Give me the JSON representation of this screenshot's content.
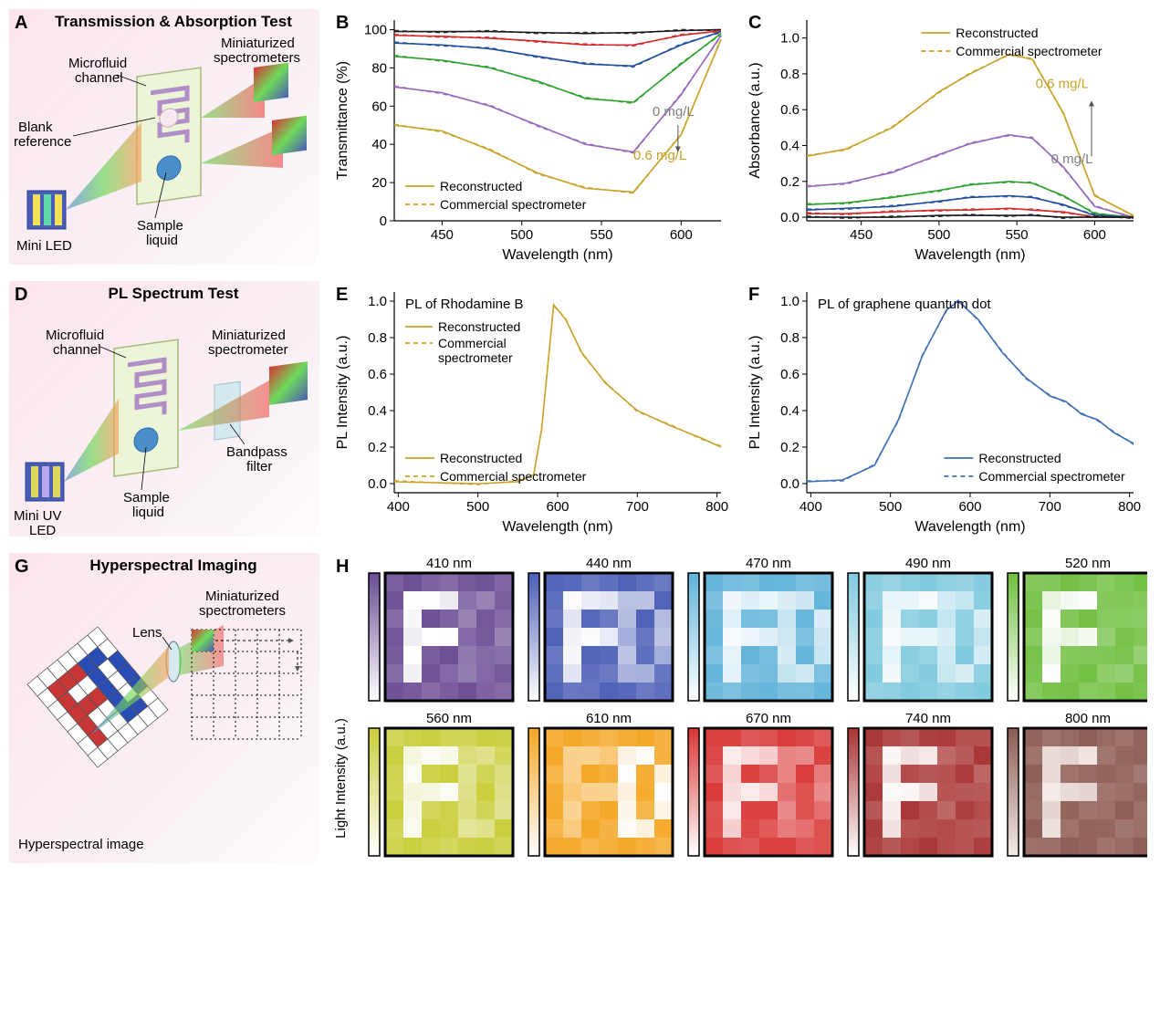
{
  "panelA": {
    "label": "A",
    "title": "Transmission & Absorption Test",
    "labels": {
      "microfluid": "Microfluid\nchannel",
      "spectrometers": "Miniaturized\nspectrometers",
      "blank": "Blank\nreference",
      "miniLED": "Mini LED",
      "sample": "Sample\nliquid"
    }
  },
  "panelB": {
    "label": "B",
    "type": "line",
    "xlabel": "Wavelength (nm)",
    "ylabel": "Transmittance (%)",
    "xlim": [
      420,
      625
    ],
    "ylim": [
      0,
      105
    ],
    "xticks": [
      450,
      500,
      550,
      600
    ],
    "yticks": [
      0,
      20,
      40,
      60,
      80,
      100
    ],
    "legend": [
      "Reconstructed",
      "Commercial spectrometer"
    ],
    "annot_top": "0 mg/L",
    "annot_bot": "0.6 mg/L",
    "annot_top_color": "#808080",
    "annot_bot_color": "#c9a227",
    "series": [
      {
        "color": "#1a1a1a",
        "x": [
          420,
          450,
          480,
          510,
          540,
          570,
          600,
          625
        ],
        "y": [
          99,
          99,
          99,
          98.5,
          98,
          98.5,
          99.5,
          100
        ]
      },
      {
        "color": "#d62728",
        "x": [
          420,
          450,
          480,
          510,
          540,
          570,
          600,
          625
        ],
        "y": [
          97,
          96.5,
          95.5,
          94,
          92,
          92,
          97,
          99.5
        ]
      },
      {
        "color": "#1f4e9c",
        "x": [
          420,
          450,
          480,
          510,
          540,
          570,
          600,
          625
        ],
        "y": [
          93,
          92,
          90,
          86,
          82,
          81,
          92,
          99
        ]
      },
      {
        "color": "#2ca02c",
        "x": [
          420,
          450,
          480,
          510,
          540,
          570,
          600,
          625
        ],
        "y": [
          86,
          84,
          80,
          73,
          64,
          62,
          82,
          98
        ]
      },
      {
        "color": "#9467bd",
        "x": [
          420,
          450,
          480,
          510,
          540,
          570,
          600,
          625
        ],
        "y": [
          70,
          67,
          60,
          50,
          40,
          36,
          66,
          97
        ]
      },
      {
        "color": "#c9a227",
        "x": [
          420,
          450,
          480,
          510,
          540,
          570,
          600,
          625
        ],
        "y": [
          50,
          47,
          37,
          25,
          17,
          15,
          45,
          95
        ]
      }
    ],
    "title_fontsize": 15,
    "label_fontsize": 15,
    "tick_fontsize": 13,
    "background_color": "#ffffff"
  },
  "panelC": {
    "label": "C",
    "type": "line",
    "xlabel": "Wavelength (nm)",
    "ylabel": "Absorbance (a.u.)",
    "xlim": [
      415,
      625
    ],
    "ylim": [
      -0.02,
      1.1
    ],
    "xticks": [
      450,
      500,
      550,
      600
    ],
    "yticks": [
      0.0,
      0.2,
      0.4,
      0.6,
      0.8,
      1.0
    ],
    "legend": [
      "Reconstructed",
      "Commercial spectrometer"
    ],
    "annot_top": "0.6 mg/L",
    "annot_bot": "0 mg/L",
    "annot_top_color": "#c9a227",
    "annot_bot_color": "#808080",
    "series": [
      {
        "color": "#c9a227",
        "x": [
          415,
          440,
          470,
          500,
          520,
          545,
          560,
          580,
          600,
          625
        ],
        "y": [
          0.34,
          0.38,
          0.5,
          0.7,
          0.8,
          0.91,
          0.88,
          0.58,
          0.12,
          0.01
        ]
      },
      {
        "color": "#9467bd",
        "x": [
          415,
          440,
          470,
          500,
          520,
          545,
          560,
          580,
          600,
          625
        ],
        "y": [
          0.17,
          0.19,
          0.25,
          0.35,
          0.41,
          0.46,
          0.44,
          0.28,
          0.06,
          0.0
        ]
      },
      {
        "color": "#2ca02c",
        "x": [
          415,
          440,
          470,
          500,
          520,
          545,
          560,
          580,
          600,
          625
        ],
        "y": [
          0.07,
          0.08,
          0.11,
          0.15,
          0.18,
          0.2,
          0.19,
          0.12,
          0.02,
          0.0
        ]
      },
      {
        "color": "#1f4e9c",
        "x": [
          415,
          440,
          470,
          500,
          520,
          545,
          560,
          580,
          600,
          625
        ],
        "y": [
          0.04,
          0.05,
          0.06,
          0.09,
          0.11,
          0.12,
          0.11,
          0.07,
          0.01,
          0.0
        ]
      },
      {
        "color": "#d62728",
        "x": [
          415,
          440,
          470,
          500,
          520,
          545,
          560,
          580,
          600,
          625
        ],
        "y": [
          0.02,
          0.02,
          0.03,
          0.04,
          0.04,
          0.05,
          0.04,
          0.03,
          0.0,
          0.0
        ]
      },
      {
        "color": "#1a1a1a",
        "x": [
          415,
          440,
          470,
          500,
          520,
          545,
          560,
          580,
          600,
          625
        ],
        "y": [
          0.0,
          0.0,
          0.0,
          0.01,
          0.01,
          0.01,
          0.01,
          0.0,
          0.0,
          0.0
        ]
      }
    ]
  },
  "panelD": {
    "label": "D",
    "title": "PL Spectrum Test",
    "labels": {
      "microfluid": "Microfluid\nchannel",
      "spectrometer": "Miniaturized\nspectrometer",
      "bandpass": "Bandpass\nfilter",
      "miniLED": "Mini UV\nLED",
      "sample": "Sample\nliquid"
    }
  },
  "panelE": {
    "label": "E",
    "type": "line",
    "title": "PL of Rhodamine B",
    "xlabel": "Wavelength (nm)",
    "ylabel": "PL Intensity (a.u.)",
    "xlim": [
      395,
      805
    ],
    "ylim": [
      -0.05,
      1.05
    ],
    "xticks": [
      400,
      500,
      600,
      700,
      800
    ],
    "yticks": [
      0.0,
      0.2,
      0.4,
      0.6,
      0.8,
      1.0
    ],
    "legend": [
      "Reconstructed",
      "Commercial spectrometer"
    ],
    "series": [
      {
        "color": "#c9a227",
        "x": [
          395,
          500,
          550,
          570,
          580,
          595,
          610,
          630,
          660,
          700,
          740,
          780,
          805
        ],
        "y": [
          0.01,
          0.0,
          0.01,
          0.05,
          0.3,
          0.98,
          0.9,
          0.72,
          0.55,
          0.4,
          0.32,
          0.25,
          0.2
        ]
      }
    ]
  },
  "panelF": {
    "label": "F",
    "type": "line",
    "title": "PL of graphene quantum dot",
    "xlabel": "Wavelength (nm)",
    "ylabel": "PL Intensity (a.u.)",
    "xlim": [
      395,
      805
    ],
    "ylim": [
      -0.05,
      1.05
    ],
    "xticks": [
      400,
      500,
      600,
      700,
      800
    ],
    "yticks": [
      0.0,
      0.2,
      0.4,
      0.6,
      0.8,
      1.0
    ],
    "legend": [
      "Reconstructed",
      "Commercial spectrometer"
    ],
    "legend_pos": "bottom-right",
    "series": [
      {
        "color": "#3b6fb6",
        "x": [
          395,
          440,
          480,
          510,
          540,
          570,
          585,
          610,
          640,
          670,
          700,
          720,
          740,
          760,
          780,
          805
        ],
        "y": [
          0.01,
          0.02,
          0.1,
          0.35,
          0.7,
          0.95,
          1.0,
          0.9,
          0.72,
          0.58,
          0.48,
          0.45,
          0.38,
          0.35,
          0.28,
          0.22
        ]
      }
    ]
  },
  "panelG": {
    "label": "G",
    "title": "Hyperspectral Imaging",
    "labels": {
      "spectrometers": "Miniaturized\nspectrometers",
      "lens": "Lens",
      "hsi": "Hyperspectral image"
    }
  },
  "panelH": {
    "label": "H",
    "ylabel": "Light Intensity (a.u.)",
    "wavelengths": [
      "410 nm",
      "440 nm",
      "470 nm",
      "490 nm",
      "520 nm",
      "560 nm",
      "610 nm",
      "670 nm",
      "740 nm",
      "800 nm"
    ],
    "colors_low": [
      "#ffffff",
      "#ffffff",
      "#ffffff",
      "#ffffff",
      "#ffffff",
      "#ffffff",
      "#ffffff",
      "#ffffff",
      "#ffffff",
      "#f5ebe8"
    ],
    "colors_high": [
      "#6a4c93",
      "#4a5db5",
      "#5fb3d9",
      "#7fc9de",
      "#6fbf3f",
      "#c9ce3a",
      "#f5a623",
      "#d93636",
      "#a83232",
      "#8b5a52"
    ],
    "grid_n": 7,
    "F_mask": [
      [
        0,
        0,
        0,
        0,
        0,
        0,
        0
      ],
      [
        0,
        1,
        1,
        1,
        0,
        0,
        0
      ],
      [
        0,
        1,
        0,
        0,
        0,
        0,
        0
      ],
      [
        0,
        1,
        1,
        1,
        0,
        0,
        0
      ],
      [
        0,
        1,
        0,
        0,
        0,
        0,
        0
      ],
      [
        0,
        1,
        0,
        0,
        0,
        0,
        0
      ],
      [
        0,
        0,
        0,
        0,
        0,
        0,
        0
      ]
    ],
    "D_mask": [
      [
        0,
        0,
        0,
        0,
        0,
        0,
        0
      ],
      [
        0,
        0,
        0,
        0,
        1,
        1,
        0
      ],
      [
        0,
        0,
        0,
        0,
        1,
        0,
        1
      ],
      [
        0,
        0,
        0,
        0,
        1,
        0,
        1
      ],
      [
        0,
        0,
        0,
        0,
        1,
        0,
        1
      ],
      [
        0,
        0,
        0,
        0,
        1,
        1,
        0
      ],
      [
        0,
        0,
        0,
        0,
        0,
        0,
        0
      ]
    ],
    "F_visibility": [
      1.0,
      0.95,
      0.9,
      0.9,
      0.95,
      0.9,
      0.4,
      0.85,
      0.95,
      0.95
    ],
    "D_visibility": [
      0.15,
      0.55,
      0.7,
      0.6,
      0.1,
      0.35,
      0.95,
      0.3,
      0.1,
      0.05
    ],
    "bg_noise": 0.15
  }
}
